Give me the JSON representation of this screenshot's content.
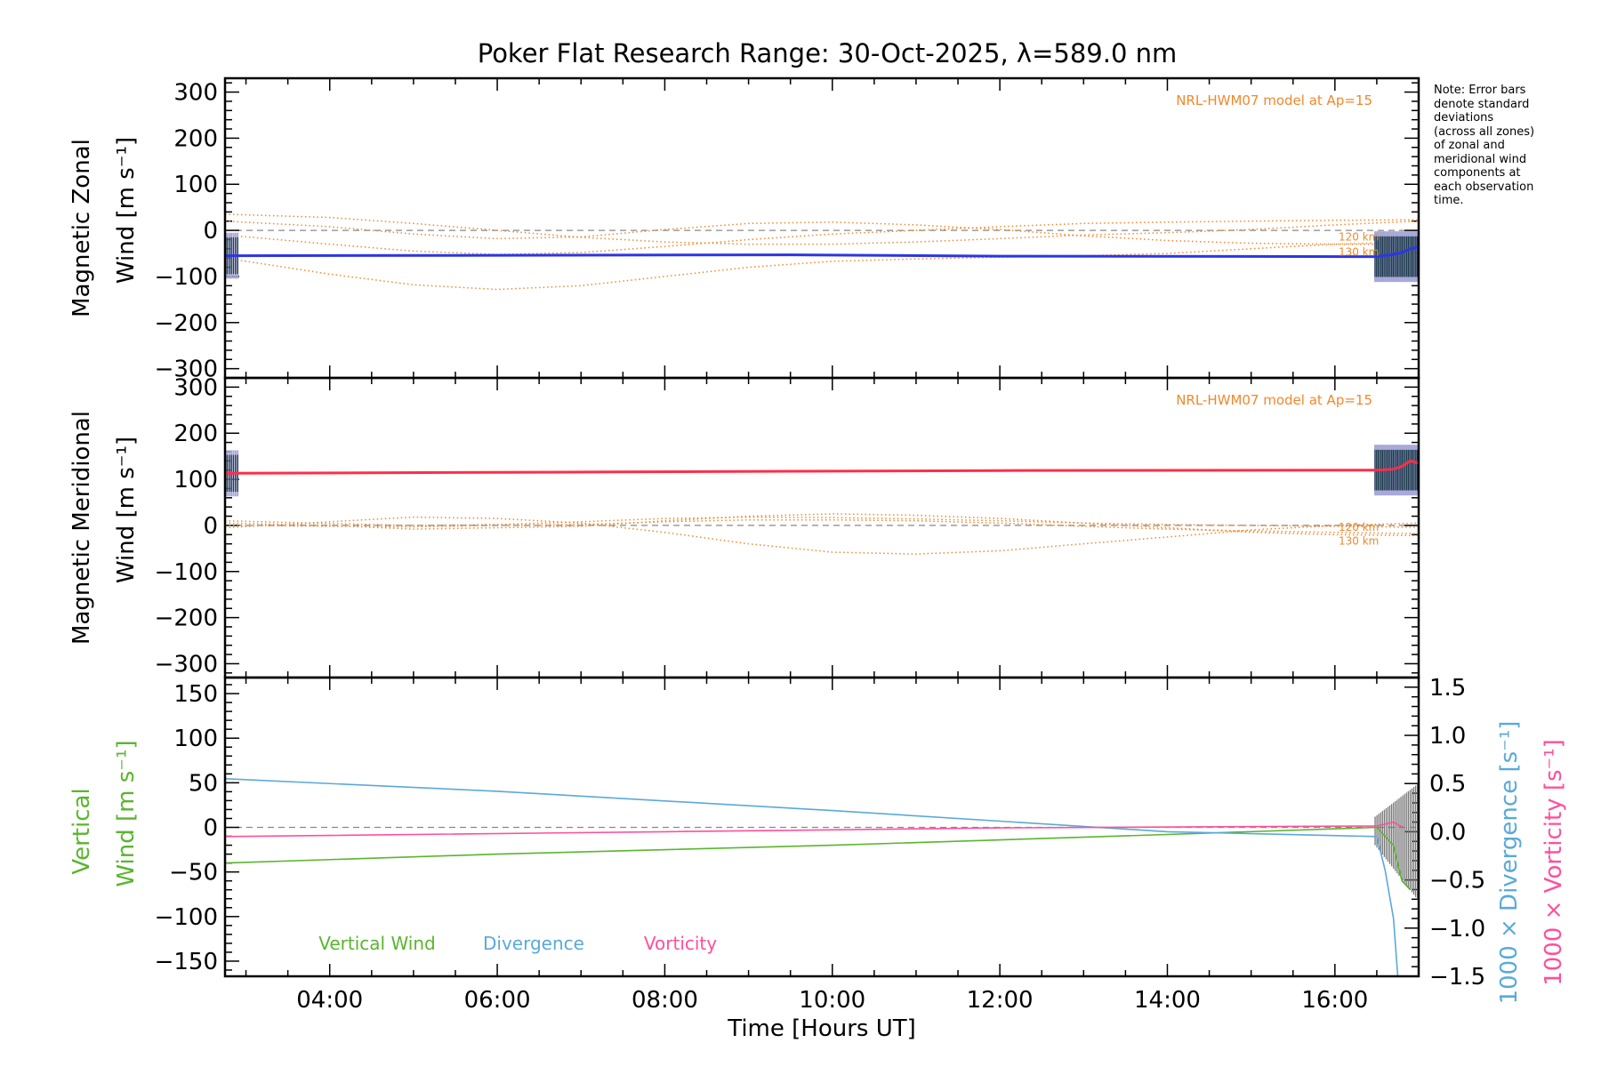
{
  "title": "Poker Flat Research Range: 30-Oct-2025, λ=589.0 nm",
  "note": "Note: Error bars\ndenote standard\ndeviations\n(across all zones)\nof zonal and\nmeridional wind\ncomponents at\neach observation\ntime.",
  "colors": {
    "zonal": "#2b35e6",
    "meridional": "#ff2e48",
    "model": "#f0882c",
    "vertical": "#5ab52e",
    "divergence": "#5aa9d9",
    "vorticity": "#ff4f9b",
    "errorbar": "#a9a9d9",
    "dashed": "#888888"
  },
  "chart_data": [
    {
      "type": "line",
      "name": "zonal-panel",
      "ylabel_lines": [
        "Magnetic Zonal",
        "Wind [m s⁻¹]"
      ],
      "model_label": "NRL-HWM07 model at Ap=15",
      "level_labels": [
        "120 km",
        "130 km"
      ],
      "xlim": [
        2.75,
        17.0
      ],
      "ylim": [
        -320,
        330
      ],
      "yticks": [
        -300,
        -200,
        -100,
        0,
        100,
        200,
        300
      ],
      "series": [
        {
          "role": "measured",
          "x": [
            2.75,
            9.5,
            12.0,
            16.5,
            16.7,
            16.8,
            16.9,
            17.0
          ],
          "y": [
            -55,
            -53,
            -56,
            -57,
            -52,
            -48,
            -40,
            -36
          ]
        },
        {
          "role": "model",
          "x": [
            2.75,
            4,
            5,
            6,
            7,
            8,
            9,
            10,
            11,
            12,
            13,
            14,
            15,
            16,
            17
          ],
          "y": [
            -60,
            -95,
            -118,
            -128,
            -120,
            -100,
            -80,
            -67,
            -62,
            -58,
            -55,
            -50,
            -40,
            -30,
            -25
          ]
        },
        {
          "role": "model",
          "x": [
            2.75,
            4,
            5,
            6,
            7,
            8,
            9,
            10,
            11,
            12,
            13,
            14,
            15,
            16,
            17
          ],
          "y": [
            35,
            28,
            15,
            0,
            -15,
            -25,
            -30,
            -30,
            -25,
            -18,
            -10,
            -5,
            2,
            12,
            20
          ]
        },
        {
          "role": "model",
          "x": [
            2.75,
            4,
            5,
            6,
            7,
            8,
            9,
            10,
            11,
            12,
            13,
            14,
            15,
            16,
            17
          ],
          "y": [
            20,
            8,
            -8,
            -18,
            -14,
            2,
            15,
            18,
            12,
            2,
            -12,
            -22,
            -28,
            -30,
            -30
          ]
        },
        {
          "role": "model",
          "x": [
            2.75,
            4,
            5,
            6,
            7,
            8,
            9,
            10,
            11,
            12,
            13,
            14,
            15,
            16,
            17
          ],
          "y": [
            -10,
            -30,
            -45,
            -52,
            -48,
            -35,
            -20,
            -8,
            0,
            8,
            15,
            18,
            20,
            22,
            23
          ]
        }
      ]
    },
    {
      "type": "line",
      "name": "meridional-panel",
      "ylabel_lines": [
        "Magnetic Meridional",
        "Wind [m s⁻¹]"
      ],
      "model_label": "NRL-HWM07 model at Ap=15",
      "level_labels": [
        "120 km",
        "130 km"
      ],
      "xlim": [
        2.75,
        17.0
      ],
      "ylim": [
        -330,
        320
      ],
      "yticks": [
        -300,
        -200,
        -100,
        0,
        100,
        200,
        300
      ],
      "series": [
        {
          "role": "measured",
          "x": [
            2.75,
            7.3,
            12.0,
            16.5,
            16.7,
            16.8,
            16.9,
            17.0
          ],
          "y": [
            113,
            116,
            119,
            120,
            122,
            128,
            140,
            135
          ]
        },
        {
          "role": "model",
          "x": [
            2.75,
            4,
            5,
            6,
            7,
            8,
            9,
            10,
            11,
            12,
            13,
            14,
            15,
            16,
            17
          ],
          "y": [
            5,
            0,
            -8,
            -5,
            -2,
            10,
            20,
            25,
            22,
            15,
            5,
            -5,
            -15,
            -20,
            -22
          ]
        },
        {
          "role": "model",
          "x": [
            2.75,
            4,
            5,
            6,
            7,
            8,
            9,
            10,
            11,
            12,
            13,
            14,
            15,
            16,
            17
          ],
          "y": [
            -5,
            8,
            18,
            15,
            5,
            -15,
            -40,
            -58,
            -62,
            -55,
            -40,
            -25,
            -10,
            0,
            5
          ]
        },
        {
          "role": "model",
          "x": [
            2.75,
            4,
            5,
            6,
            7,
            8,
            9,
            10,
            11,
            12,
            13,
            14,
            15,
            16,
            17
          ],
          "y": [
            0,
            -2,
            -3,
            0,
            2,
            8,
            12,
            12,
            10,
            5,
            -2,
            -8,
            -12,
            -15,
            -18
          ]
        },
        {
          "role": "model",
          "x": [
            2.75,
            4,
            5,
            6,
            7,
            8,
            9,
            10,
            11,
            12,
            13,
            14,
            15,
            16,
            17
          ],
          "y": [
            10,
            4,
            0,
            2,
            8,
            15,
            18,
            17,
            14,
            10,
            5,
            2,
            0,
            -2,
            -4
          ]
        }
      ]
    },
    {
      "type": "line",
      "name": "vertical-panel",
      "ylabel_left": [
        "Vertical",
        "Wind [m s⁻¹]"
      ],
      "ylabel_right": [
        "1000 × Divergence [s⁻¹]",
        "1000 × Vorticity [s⁻¹]"
      ],
      "xlabel": "Time [Hours UT]",
      "xticks": [
        "04:00",
        "06:00",
        "08:00",
        "10:00",
        "12:00",
        "14:00",
        "16:00"
      ],
      "xlim": [
        2.75,
        17.0
      ],
      "ylim": [
        -167,
        168
      ],
      "yticks": [
        -150,
        -100,
        -50,
        0,
        50,
        100,
        150
      ],
      "y2lim": [
        -1.5,
        1.6
      ],
      "y2ticks": [
        -1.5,
        -1.0,
        -0.5,
        0.0,
        0.5,
        1.0,
        1.5
      ],
      "legend": [
        "Vertical Wind",
        "Divergence",
        "Vorticity"
      ],
      "series": [
        {
          "name": "Vertical Wind",
          "axis": "left",
          "x": [
            2.75,
            6.0,
            10.0,
            14.0,
            16.5,
            16.7,
            16.8,
            16.9
          ],
          "y": [
            -40,
            -30,
            -20,
            -8,
            0,
            -20,
            -60,
            -70
          ]
        },
        {
          "name": "Divergence",
          "axis": "right",
          "x": [
            2.75,
            6.0,
            10.0,
            14.0,
            16.5,
            16.6,
            16.7,
            16.75
          ],
          "y": [
            0.55,
            0.42,
            0.22,
            0.0,
            -0.05,
            -0.4,
            -0.9,
            -1.5
          ]
        },
        {
          "name": "Vorticity",
          "axis": "right",
          "x": [
            2.75,
            8.0,
            12.0,
            16.5,
            16.7,
            16.8
          ],
          "y": [
            -0.05,
            0.0,
            0.04,
            0.06,
            0.1,
            0.05
          ]
        }
      ]
    }
  ]
}
